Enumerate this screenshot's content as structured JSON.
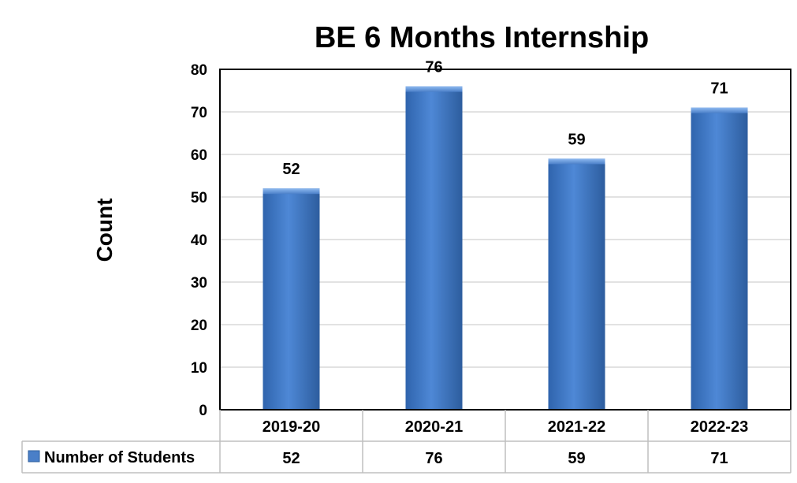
{
  "chart_data": {
    "type": "bar",
    "title": "BE 6 Months Internship",
    "xlabel": "",
    "ylabel": "Count",
    "categories": [
      "2019-20",
      "2020-21",
      "2021-22",
      "2022-23"
    ],
    "series": [
      {
        "name": "Number of Students",
        "values": [
          52,
          76,
          59,
          71
        ],
        "color": "#4a7fc8"
      }
    ],
    "ylim": [
      0,
      80
    ],
    "yticks": [
      0,
      10,
      20,
      30,
      40,
      50,
      60,
      70,
      80
    ],
    "grid": true,
    "data_labels": true,
    "data_table": true
  },
  "colors": {
    "bar_top": "#5b93dc",
    "bar_bottom": "#2f5f9e",
    "grid": "#d9d9d9",
    "axis": "#000000",
    "table_border": "#bfbfbf"
  }
}
